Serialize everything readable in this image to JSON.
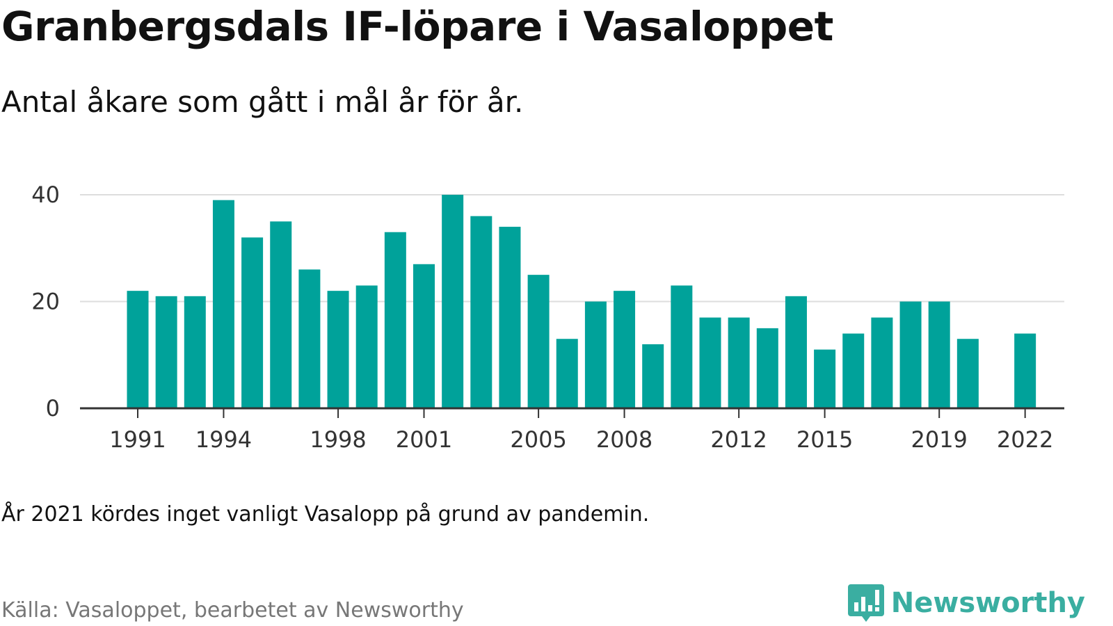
{
  "title": "Granbergsdals IF-löpare i Vasaloppet",
  "subtitle": "Antal åkare som gått i mål år för år.",
  "note": "År 2021 kördes inget vanligt Vasalopp på grund av pandemin.",
  "source": "Källa: Vasaloppet, bearbetet av Newsworthy",
  "brand": {
    "name": "Newsworthy",
    "icon": "newsworthy-logo-icon"
  },
  "colors": {
    "bar": "#00a29a",
    "brand": "#3aaea1",
    "grid": "#dddddd",
    "baseline": "#333333"
  },
  "chart_data": {
    "type": "bar",
    "categories": [
      "1991",
      "1992",
      "1993",
      "1994",
      "1995",
      "1996",
      "1997",
      "1998",
      "1999",
      "2000",
      "2001",
      "2002",
      "2003",
      "2004",
      "2005",
      "2006",
      "2007",
      "2008",
      "2009",
      "2010",
      "2011",
      "2012",
      "2013",
      "2014",
      "2015",
      "2016",
      "2017",
      "2018",
      "2019",
      "2020",
      "2021",
      "2022"
    ],
    "values": [
      22,
      21,
      21,
      39,
      32,
      35,
      26,
      22,
      23,
      33,
      27,
      40,
      36,
      34,
      25,
      13,
      20,
      22,
      12,
      23,
      17,
      17,
      15,
      21,
      11,
      14,
      17,
      20,
      20,
      13,
      null,
      14
    ],
    "x_tick_labels": [
      "1991",
      "1994",
      "1998",
      "2001",
      "2005",
      "2008",
      "2012",
      "2015",
      "2019",
      "2022"
    ],
    "y_ticks": [
      "0",
      "20",
      "40"
    ],
    "ylim": [
      0,
      40
    ],
    "grid": true
  }
}
